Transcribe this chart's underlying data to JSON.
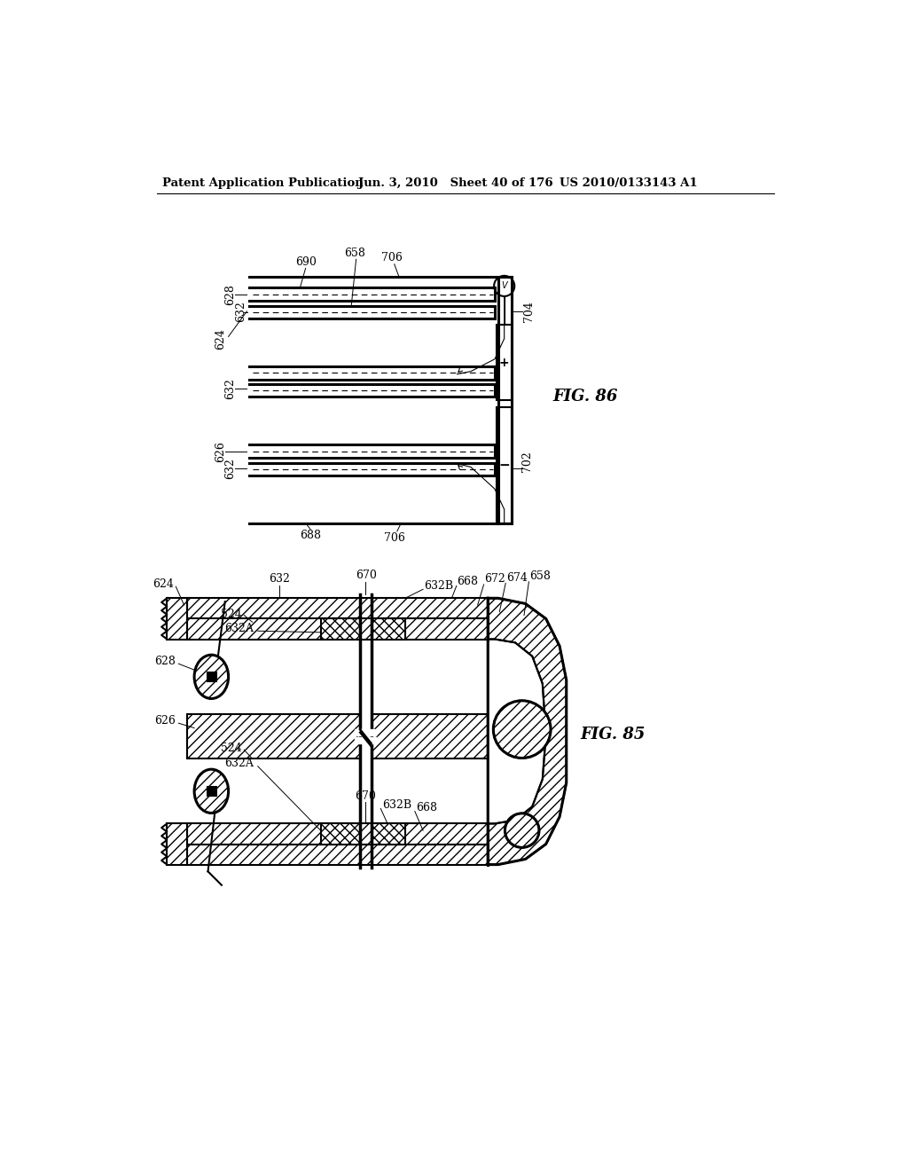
{
  "header_left": "Patent Application Publication",
  "header_mid": "Jun. 3, 2010   Sheet 40 of 176",
  "header_right": "US 2010/0133143 A1",
  "fig86_label": "FIG. 86",
  "fig85_label": "FIG. 85",
  "bg_color": "#ffffff",
  "line_color": "#000000"
}
